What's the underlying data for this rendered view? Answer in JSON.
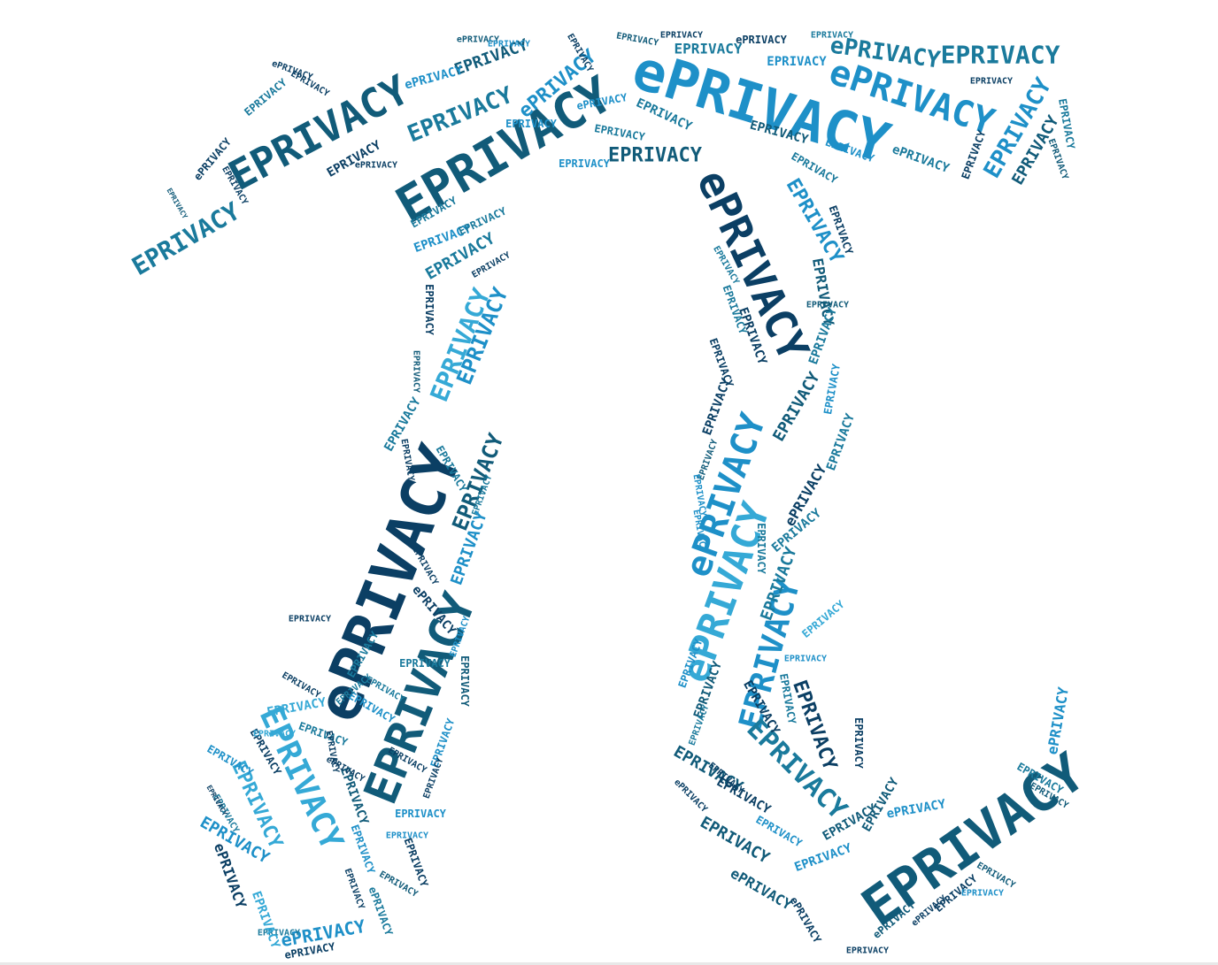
{
  "artwork": {
    "shape": "pi-symbol",
    "word_upper": "EPRIVACY",
    "word_mixed": "ePRIVACY",
    "palette": {
      "navy": "#0b3f64",
      "dark_teal": "#115b79",
      "teal": "#1a7a9c",
      "blue": "#1e90c8",
      "sky": "#35a9d6",
      "aqua": "#3fb6c9"
    }
  }
}
